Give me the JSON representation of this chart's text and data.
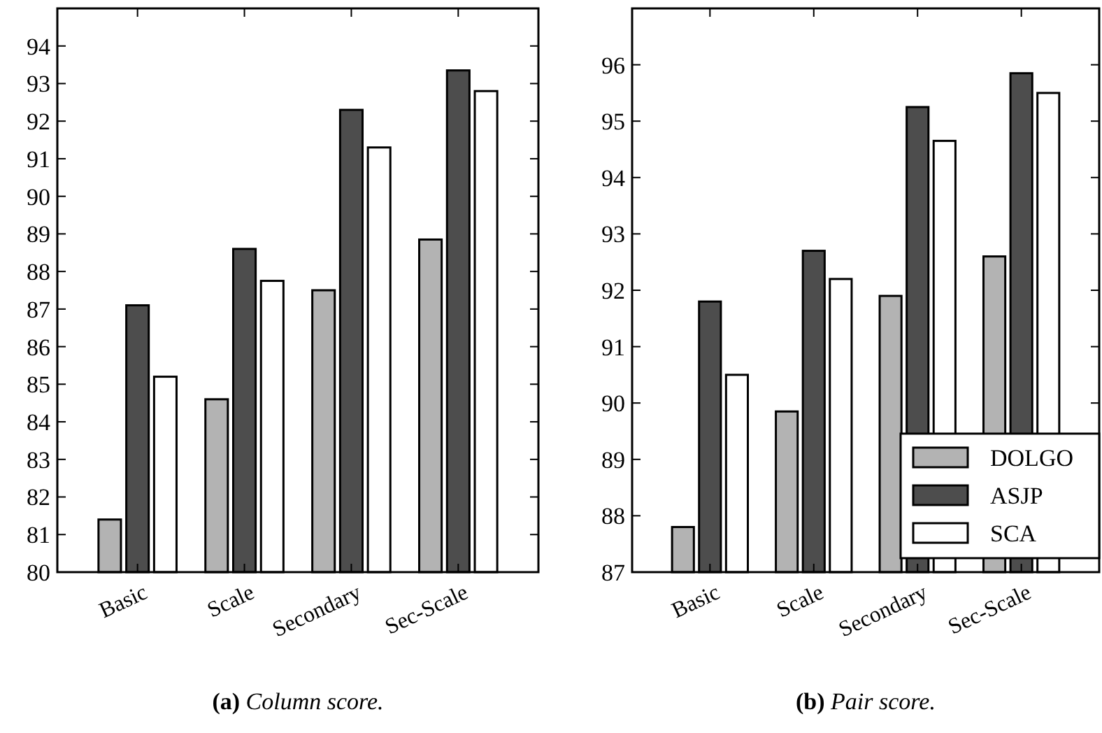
{
  "chart_data": [
    {
      "type": "bar",
      "title": "(a) Column score.",
      "categories": [
        "Basic",
        "Scale",
        "Secondary",
        "Sec-Scale"
      ],
      "series": [
        {
          "color": "#b3b3b3",
          "values": [
            81.4,
            84.6,
            87.5,
            88.85
          ]
        },
        {
          "color": "#4d4d4d",
          "values": [
            87.1,
            88.6,
            92.3,
            93.35
          ]
        },
        {
          "color": "#ffffff",
          "values": [
            85.2,
            87.75,
            91.3,
            92.8
          ]
        }
      ],
      "ylim": [
        80,
        95
      ],
      "yticks": [
        80,
        81,
        82,
        83,
        84,
        85,
        86,
        87,
        88,
        89,
        90,
        91,
        92,
        93,
        94
      ],
      "grid": false,
      "legend": false
    },
    {
      "type": "bar",
      "title": "(b) Pair score.",
      "categories": [
        "Basic",
        "Scale",
        "Secondary",
        "Sec-Scale"
      ],
      "series": [
        {
          "name": "DOLGO",
          "color": "#b3b3b3",
          "values": [
            87.8,
            89.85,
            91.9,
            92.6
          ]
        },
        {
          "name": "ASJP",
          "color": "#4d4d4d",
          "values": [
            91.8,
            92.7,
            95.25,
            95.85
          ]
        },
        {
          "name": "SCA",
          "color": "#ffffff",
          "values": [
            90.5,
            92.2,
            94.65,
            95.5
          ]
        }
      ],
      "ylim": [
        87,
        97
      ],
      "yticks": [
        87,
        88,
        89,
        90,
        91,
        92,
        93,
        94,
        95,
        96
      ],
      "grid": false,
      "legend": "bottom right"
    }
  ]
}
